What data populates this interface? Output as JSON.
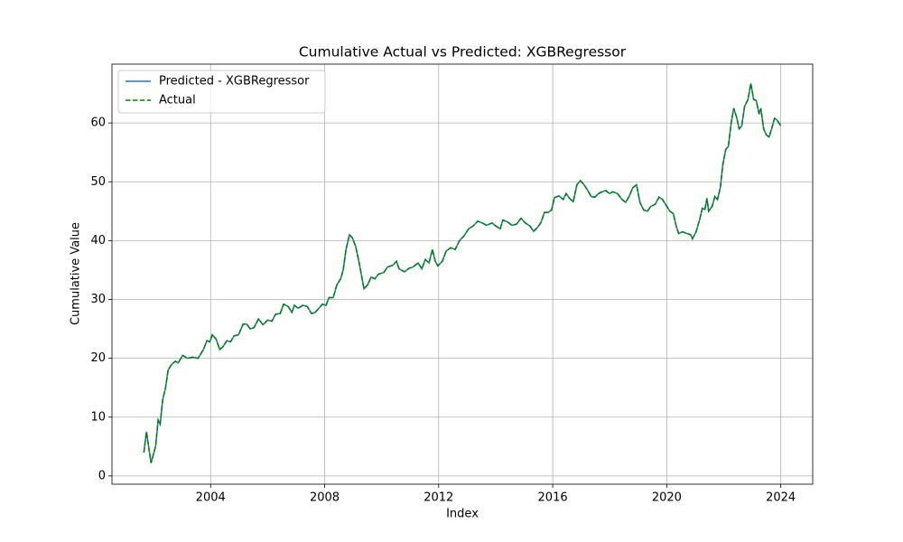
{
  "chart_data": {
    "type": "line",
    "title": "Cumulative Actual vs Predicted: XGBRegressor",
    "xlabel": "Index",
    "ylabel": "Cumulative Value",
    "x": [
      2001.66,
      2001.75,
      2001.91,
      2002.07,
      2002.16,
      2002.23,
      2002.32,
      2002.42,
      2002.51,
      2002.64,
      2002.77,
      2002.86,
      2003.02,
      2003.18,
      2003.37,
      2003.56,
      2003.75,
      2003.87,
      2003.97,
      2004.06,
      2004.19,
      2004.32,
      2004.44,
      2004.57,
      2004.7,
      2004.82,
      2004.98,
      2005.14,
      2005.27,
      2005.39,
      2005.52,
      2005.68,
      2005.84,
      2006.0,
      2006.15,
      2006.28,
      2006.44,
      2006.56,
      2006.72,
      2006.85,
      2006.94,
      2007.07,
      2007.23,
      2007.39,
      2007.54,
      2007.67,
      2007.8,
      2007.92,
      2008.05,
      2008.15,
      2008.3,
      2008.43,
      2008.56,
      2008.65,
      2008.75,
      2008.87,
      2008.97,
      2009.09,
      2009.22,
      2009.38,
      2009.51,
      2009.63,
      2009.76,
      2009.89,
      2010.08,
      2010.2,
      2010.39,
      2010.52,
      2010.61,
      2010.8,
      2010.96,
      2011.09,
      2011.28,
      2011.41,
      2011.53,
      2011.66,
      2011.78,
      2011.88,
      2011.97,
      2012.13,
      2012.26,
      2012.42,
      2012.58,
      2012.73,
      2012.89,
      2013.05,
      2013.21,
      2013.37,
      2013.53,
      2013.68,
      2013.87,
      2014.0,
      2014.16,
      2014.25,
      2014.41,
      2014.57,
      2014.73,
      2014.89,
      2015.04,
      2015.2,
      2015.33,
      2015.46,
      2015.58,
      2015.71,
      2015.84,
      2015.96,
      2016.06,
      2016.22,
      2016.37,
      2016.47,
      2016.59,
      2016.72,
      2016.85,
      2016.97,
      2017.1,
      2017.23,
      2017.35,
      2017.48,
      2017.61,
      2017.73,
      2017.86,
      2017.99,
      2018.11,
      2018.27,
      2018.43,
      2018.56,
      2018.68,
      2018.81,
      2018.94,
      2019.06,
      2019.19,
      2019.32,
      2019.44,
      2019.6,
      2019.73,
      2019.85,
      2019.98,
      2020.11,
      2020.23,
      2020.33,
      2020.42,
      2020.55,
      2020.71,
      2020.84,
      2020.9,
      2021.03,
      2021.15,
      2021.25,
      2021.34,
      2021.41,
      2021.47,
      2021.59,
      2021.69,
      2021.78,
      2021.88,
      2021.97,
      2022.07,
      2022.16,
      2022.26,
      2022.35,
      2022.45,
      2022.54,
      2022.63,
      2022.73,
      2022.85,
      2022.95,
      2023.05,
      2023.14,
      2023.24,
      2023.3,
      2023.4,
      2023.49,
      2023.59,
      2023.68,
      2023.78,
      2023.87,
      2024.0
    ],
    "series": [
      {
        "name": "Predicted - XGBRegressor",
        "color": "#1f77b4",
        "linestyle": "solid",
        "values": [
          4,
          7.5,
          2.2,
          5,
          9.5,
          8.8,
          13,
          15,
          18,
          19,
          19.5,
          19.2,
          20.5,
          20,
          20.2,
          20,
          21.5,
          23,
          22.8,
          24,
          23.3,
          21.5,
          22,
          23,
          22.8,
          23.8,
          24,
          25.8,
          25.8,
          25,
          25.2,
          26.7,
          25.7,
          26.5,
          26.3,
          27.5,
          27.6,
          29.2,
          28.8,
          27.8,
          29,
          28.5,
          29,
          28.8,
          27.6,
          27.8,
          28.5,
          29.2,
          29,
          30.3,
          30.3,
          32.5,
          33.5,
          35,
          38.5,
          41,
          40.5,
          39,
          36,
          31.8,
          32.5,
          33.8,
          33.5,
          34.3,
          34.6,
          35.5,
          35.8,
          36.5,
          35.2,
          34.7,
          35.3,
          35.5,
          36.2,
          35.2,
          36.8,
          36.2,
          38.5,
          36.5,
          35.7,
          36.5,
          38.2,
          38.8,
          38.5,
          40,
          40.8,
          42,
          42.5,
          43.3,
          43,
          42.6,
          43,
          42.5,
          42,
          43.5,
          43.2,
          42.6,
          42.8,
          43.8,
          43,
          42.5,
          41.6,
          42.2,
          43,
          44.8,
          44.8,
          45.2,
          47.3,
          47.6,
          47,
          48,
          47.2,
          46.6,
          49.5,
          50.2,
          49.5,
          48.5,
          47.5,
          47.4,
          48,
          48.3,
          48.5,
          48,
          48.3,
          48,
          47,
          46.5,
          47.5,
          49,
          49.5,
          46.5,
          45.2,
          45,
          45.8,
          46.2,
          47.4,
          47,
          46,
          45,
          44.6,
          42.5,
          41.2,
          41.5,
          41.2,
          41,
          40.3,
          41.5,
          43.5,
          45.5,
          45.3,
          47.2,
          45,
          45.8,
          47.5,
          47,
          49,
          53,
          55.5,
          56,
          60,
          62.5,
          61,
          59,
          59.5,
          62.8,
          64,
          66.7,
          64,
          63.8,
          61.5,
          62.5,
          59,
          58,
          57.6,
          59,
          60.8,
          60.5,
          59.5
        ]
      },
      {
        "name": "Actual",
        "color": "#008000",
        "linestyle": "dashed",
        "values": [
          4,
          7.5,
          2.2,
          5,
          9.5,
          8.8,
          13,
          15,
          18,
          19,
          19.5,
          19.2,
          20.5,
          20,
          20.2,
          20,
          21.5,
          23,
          22.8,
          24,
          23.3,
          21.5,
          22,
          23,
          22.8,
          23.8,
          24,
          25.8,
          25.8,
          25,
          25.2,
          26.7,
          25.7,
          26.5,
          26.3,
          27.5,
          27.6,
          29.2,
          28.8,
          27.8,
          29,
          28.5,
          29,
          28.8,
          27.6,
          27.8,
          28.5,
          29.2,
          29,
          30.3,
          30.3,
          32.5,
          33.5,
          35,
          38.5,
          41,
          40.5,
          39,
          36,
          31.8,
          32.5,
          33.8,
          33.5,
          34.3,
          34.6,
          35.5,
          35.8,
          36.5,
          35.2,
          34.7,
          35.3,
          35.5,
          36.2,
          35.2,
          36.8,
          36.2,
          38.5,
          36.5,
          35.7,
          36.5,
          38.2,
          38.8,
          38.5,
          40,
          40.8,
          42,
          42.5,
          43.3,
          43,
          42.6,
          43,
          42.5,
          42,
          43.5,
          43.2,
          42.6,
          42.8,
          43.8,
          43,
          42.5,
          41.6,
          42.2,
          43,
          44.8,
          44.8,
          45.2,
          47.3,
          47.6,
          47,
          48,
          47.2,
          46.6,
          49.5,
          50.2,
          49.5,
          48.5,
          47.5,
          47.4,
          48,
          48.3,
          48.5,
          48,
          48.3,
          48,
          47,
          46.5,
          47.5,
          49,
          49.5,
          46.5,
          45.2,
          45,
          45.8,
          46.2,
          47.4,
          47,
          46,
          45,
          44.6,
          42.5,
          41.2,
          41.5,
          41.2,
          41,
          40.3,
          41.5,
          43.5,
          45.5,
          45.3,
          47.2,
          45,
          45.8,
          47.5,
          47,
          49,
          53,
          55.5,
          56,
          60,
          62.5,
          61,
          59,
          59.5,
          62.8,
          64,
          66.7,
          64,
          63.8,
          61.5,
          62.5,
          59,
          58,
          57.6,
          59,
          60.8,
          60.5,
          59.5
        ]
      }
    ],
    "xlim": [
      2000.54,
      2025.12
    ],
    "xticks": [
      2004,
      2008,
      2012,
      2016,
      2020,
      2024
    ],
    "ylim": [
      -1.4,
      70
    ],
    "yticks": [
      0,
      10,
      20,
      30,
      40,
      50,
      60
    ],
    "grid": true,
    "legend": "upper left"
  }
}
